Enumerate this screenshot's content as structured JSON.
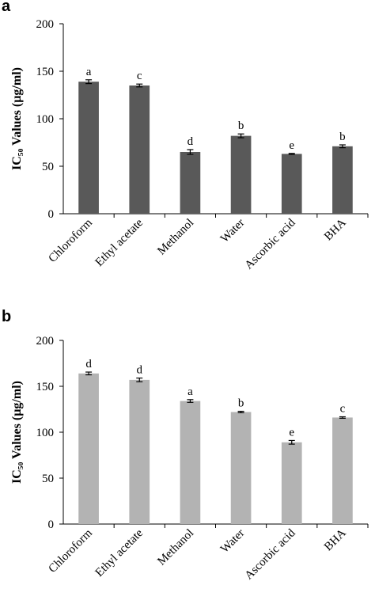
{
  "chart_data": [
    {
      "type": "bar",
      "panel": "a",
      "ylabel": "IC₅₀ Values (µg/ml)",
      "ylim": [
        0,
        200
      ],
      "yticks": [
        0,
        50,
        100,
        150,
        200
      ],
      "grid": false,
      "categories": [
        "Chloroform",
        "Ethyl acetate",
        "Methanol",
        "Water",
        "Ascorbic acid",
        "BHA"
      ],
      "values": [
        139,
        135,
        65,
        82,
        63,
        71
      ],
      "errors": [
        2,
        1.5,
        2.5,
        2,
        0.5,
        1.5
      ],
      "significance_letters": [
        "a",
        "c",
        "d",
        "b",
        "e",
        "b"
      ],
      "bar_color": "#595959"
    },
    {
      "type": "bar",
      "panel": "b",
      "ylabel": "IC₅₀ Values (µg/ml)",
      "ylim": [
        0,
        200
      ],
      "yticks": [
        0,
        50,
        100,
        150,
        200
      ],
      "grid": false,
      "categories": [
        "Chloroform",
        "Ethyl acetate",
        "Methanol",
        "Water",
        "Ascorbic acid",
        "BHA"
      ],
      "values": [
        164,
        157,
        134,
        122,
        89,
        116
      ],
      "errors": [
        1.5,
        2,
        1.5,
        0.8,
        2,
        0.8
      ],
      "significance_letters": [
        "d",
        "d",
        "a",
        "b",
        "e",
        "c"
      ],
      "bar_color": "#b3b3b3"
    }
  ]
}
